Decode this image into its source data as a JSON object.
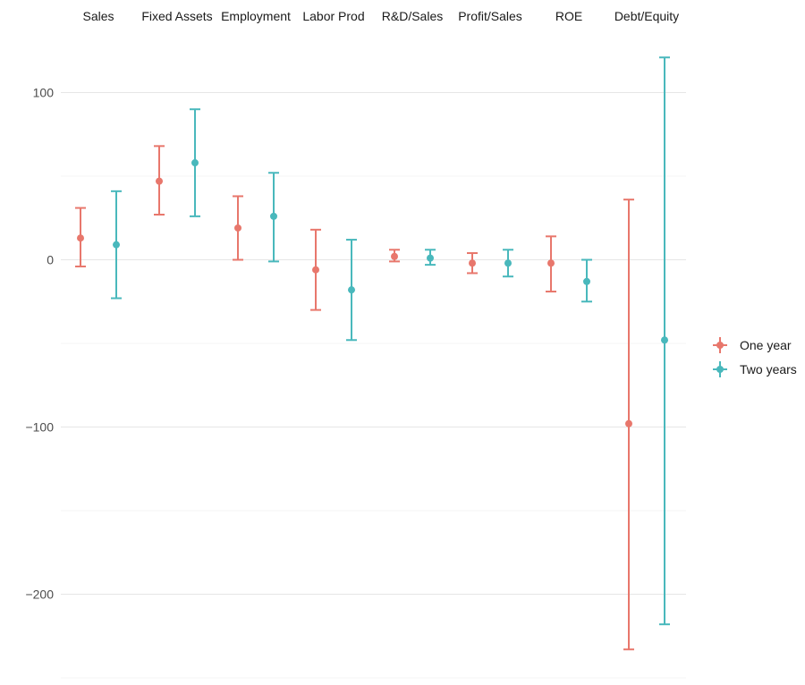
{
  "chart_data": {
    "type": "errorbar",
    "categories": [
      "Sales",
      "Fixed Assets",
      "Employment",
      "Labor Prod",
      "R&D/Sales",
      "Profit/Sales",
      "ROE",
      "Debt/Equity"
    ],
    "series": [
      {
        "name": "One year",
        "color": "#E8776C",
        "estimate": [
          13,
          47,
          19,
          -6,
          2,
          -2,
          -2,
          -98
        ],
        "lower": [
          -4,
          27,
          0,
          -30,
          -1,
          -8,
          -19,
          -233
        ],
        "upper": [
          31,
          68,
          38,
          18,
          6,
          4,
          14,
          36
        ]
      },
      {
        "name": "Two years",
        "color": "#49B8BC",
        "estimate": [
          9,
          58,
          26,
          -18,
          1,
          -2,
          -13,
          -48
        ],
        "lower": [
          -23,
          26,
          -1,
          -48,
          -3,
          -10,
          -25,
          -218
        ],
        "upper": [
          41,
          90,
          52,
          12,
          6,
          6,
          0,
          121
        ]
      }
    ],
    "yticks": [
      100,
      0,
      -100,
      -200
    ],
    "ytick_labels": [
      "100",
      "0",
      "−100",
      "−200"
    ],
    "ylim": [
      -250,
      125
    ],
    "grid": true,
    "legend_position": "right"
  }
}
